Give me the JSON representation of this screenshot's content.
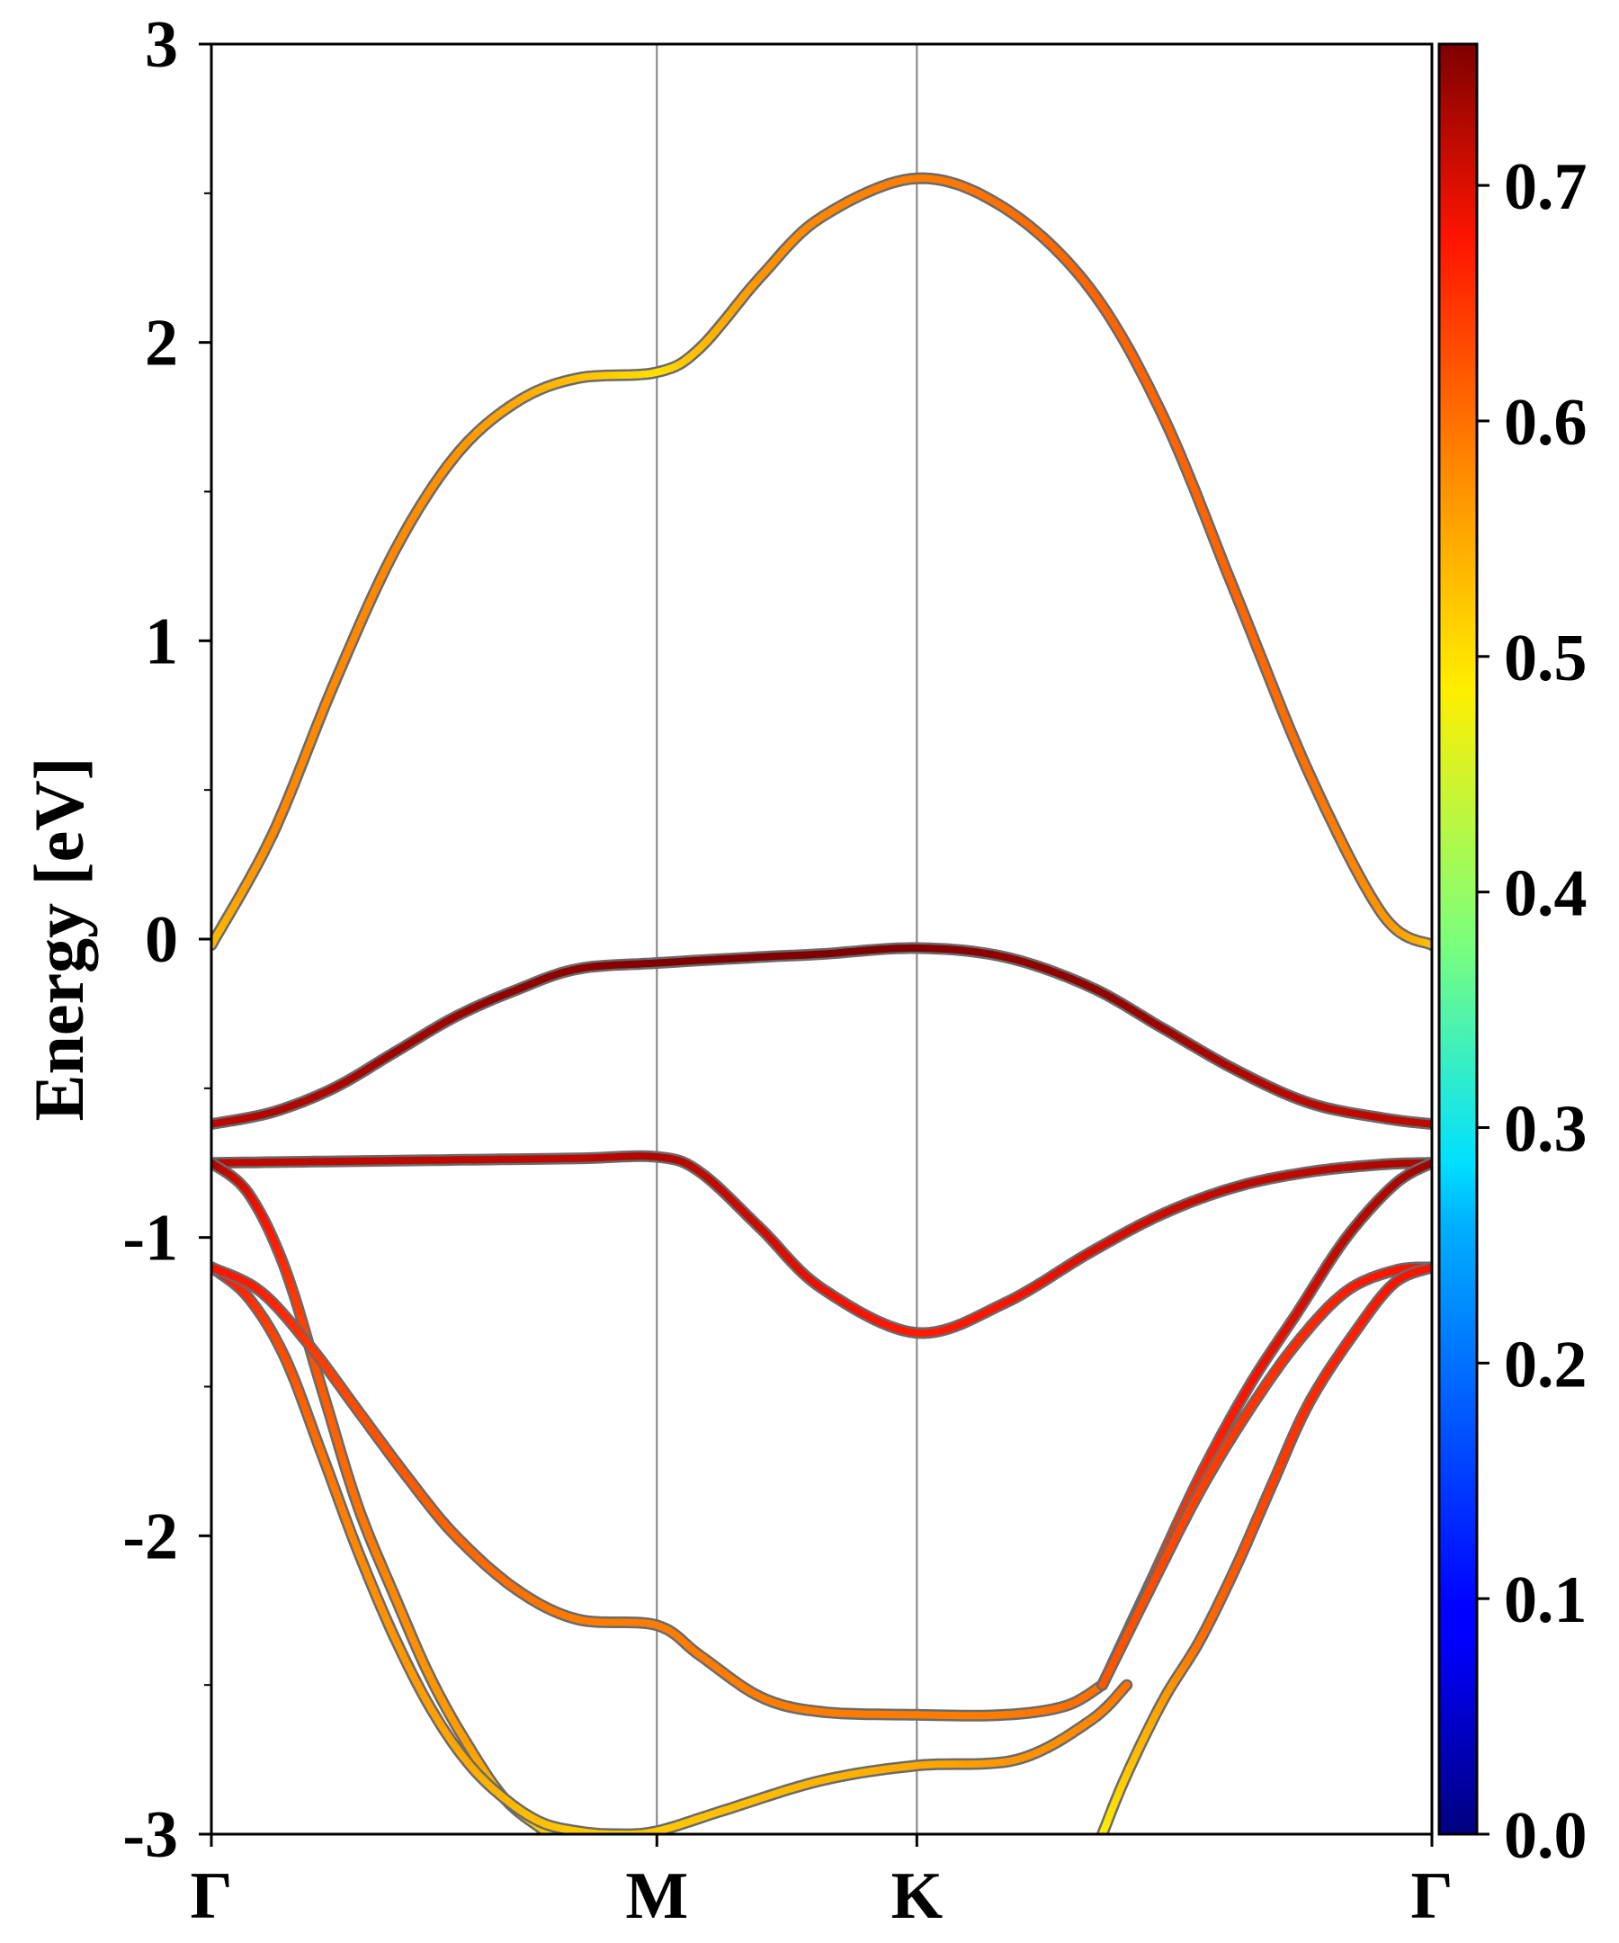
{
  "chart_data": {
    "type": "line",
    "xlabel": "",
    "ylabel": "Energy [eV]",
    "ylim": [
      -3,
      3
    ],
    "yticks": [
      "3",
      "2",
      "1",
      "0",
      "-1",
      "-2",
      "-3"
    ],
    "high_symmetry_points": [
      {
        "label": "Γ",
        "x": 0
      },
      {
        "label": "M",
        "x": 0.365
      },
      {
        "label": "K",
        "x": 0.578
      },
      {
        "label": "Γ",
        "x": 1
      }
    ],
    "grid": false,
    "colorbar": {
      "colormap": "jet",
      "range": [
        0.0,
        0.76
      ],
      "ticks": [
        "0.0",
        "0.1",
        "0.2",
        "0.3",
        "0.4",
        "0.5",
        "0.6",
        "0.7"
      ]
    },
    "series": [
      {
        "x": [
          0,
          0.05,
          0.1,
          0.15,
          0.2,
          0.25,
          0.3,
          0.365,
          0.4,
          0.45,
          0.5,
          0.578,
          0.65,
          0.72,
          0.78,
          0.84,
          0.9,
          0.96,
          1.0
        ],
        "y": [
          -0.02,
          0.35,
          0.85,
          1.3,
          1.62,
          1.8,
          1.88,
          1.9,
          1.98,
          2.22,
          2.42,
          2.55,
          2.45,
          2.18,
          1.75,
          1.15,
          0.55,
          0.08,
          -0.02
        ],
        "weight": [
          0.53,
          0.58,
          0.58,
          0.58,
          0.57,
          0.55,
          0.53,
          0.5,
          0.53,
          0.57,
          0.58,
          0.59,
          0.6,
          0.61,
          0.61,
          0.61,
          0.6,
          0.57,
          0.53
        ]
      },
      {
        "x": [
          0,
          0.05,
          0.1,
          0.15,
          0.2,
          0.25,
          0.3,
          0.365,
          0.45,
          0.5,
          0.578,
          0.65,
          0.72,
          0.78,
          0.84,
          0.9,
          0.96,
          1.0
        ],
        "y": [
          -0.62,
          -0.58,
          -0.5,
          -0.38,
          -0.26,
          -0.17,
          -0.1,
          -0.08,
          -0.06,
          -0.05,
          -0.03,
          -0.06,
          -0.16,
          -0.3,
          -0.44,
          -0.55,
          -0.6,
          -0.62
        ],
        "weight": [
          0.72,
          0.73,
          0.73,
          0.74,
          0.74,
          0.75,
          0.75,
          0.76,
          0.76,
          0.76,
          0.76,
          0.75,
          0.75,
          0.74,
          0.73,
          0.72,
          0.72,
          0.72
        ]
      },
      {
        "x": [
          0,
          0.1,
          0.2,
          0.3,
          0.365,
          0.4,
          0.45,
          0.5,
          0.578,
          0.65,
          0.72,
          0.78,
          0.84,
          0.9,
          0.96,
          1.0
        ],
        "y": [
          -0.75,
          -0.745,
          -0.74,
          -0.735,
          -0.73,
          -0.78,
          -0.97,
          -1.17,
          -1.32,
          -1.22,
          -1.05,
          -0.92,
          -0.83,
          -0.78,
          -0.755,
          -0.75
        ],
        "weight": [
          0.72,
          0.72,
          0.72,
          0.72,
          0.73,
          0.72,
          0.71,
          0.69,
          0.67,
          0.68,
          0.7,
          0.71,
          0.72,
          0.72,
          0.73,
          0.73
        ]
      },
      {
        "x": [
          0,
          0.03,
          0.06,
          0.09,
          0.12,
          0.15,
          0.18,
          0.21,
          0.24,
          0.27,
          0.28
        ],
        "y": [
          -0.75,
          -0.85,
          -1.1,
          -1.5,
          -1.9,
          -2.2,
          -2.48,
          -2.7,
          -2.88,
          -2.98,
          -3.0
        ],
        "weight": [
          0.74,
          0.7,
          0.66,
          0.62,
          0.6,
          0.58,
          0.57,
          0.56,
          0.54,
          0.52,
          0.51
        ]
      },
      {
        "x": [
          0,
          0.03,
          0.06,
          0.09,
          0.12,
          0.15,
          0.18,
          0.21,
          0.24,
          0.27,
          0.3,
          0.33,
          0.365,
          0.42,
          0.5,
          0.578,
          0.66,
          0.72,
          0.75
        ],
        "y": [
          -1.1,
          -1.2,
          -1.4,
          -1.72,
          -2.05,
          -2.34,
          -2.58,
          -2.76,
          -2.88,
          -2.96,
          -2.99,
          -3.0,
          -2.99,
          -2.92,
          -2.82,
          -2.77,
          -2.75,
          -2.62,
          -2.5
        ],
        "weight": [
          0.68,
          0.66,
          0.63,
          0.6,
          0.58,
          0.57,
          0.56,
          0.55,
          0.54,
          0.53,
          0.52,
          0.52,
          0.52,
          0.53,
          0.54,
          0.55,
          0.57,
          0.58,
          0.6
        ]
      },
      {
        "x": [
          0,
          0.04,
          0.08,
          0.12,
          0.16,
          0.2,
          0.25,
          0.3,
          0.365,
          0.4,
          0.45,
          0.5,
          0.578,
          0.65,
          0.7,
          0.73
        ],
        "y": [
          -1.1,
          -1.18,
          -1.36,
          -1.58,
          -1.8,
          -2.0,
          -2.18,
          -2.28,
          -2.3,
          -2.4,
          -2.54,
          -2.59,
          -2.6,
          -2.6,
          -2.57,
          -2.5
        ],
        "weight": [
          0.68,
          0.67,
          0.65,
          0.63,
          0.62,
          0.61,
          0.6,
          0.59,
          0.59,
          0.59,
          0.59,
          0.59,
          0.59,
          0.59,
          0.6,
          0.6
        ]
      },
      {
        "x": [
          0.73,
          0.77,
          0.81,
          0.85,
          0.89,
          0.93,
          0.97,
          1.0
        ],
        "y": [
          -2.5,
          -2.15,
          -1.8,
          -1.5,
          -1.25,
          -1.0,
          -0.82,
          -0.75
        ],
        "weight": [
          0.62,
          0.64,
          0.66,
          0.68,
          0.7,
          0.72,
          0.73,
          0.74
        ]
      },
      {
        "x": [
          0.73,
          0.77,
          0.81,
          0.85,
          0.89,
          0.93,
          0.97,
          1.0
        ],
        "y": [
          -2.5,
          -2.17,
          -1.85,
          -1.58,
          -1.35,
          -1.18,
          -1.11,
          -1.1
        ],
        "weight": [
          0.62,
          0.63,
          0.64,
          0.65,
          0.66,
          0.67,
          0.68,
          0.68
        ]
      },
      {
        "x": [
          0.73,
          0.75,
          0.78,
          0.81,
          0.84,
          0.87,
          0.9,
          0.94,
          0.97,
          1.0
        ],
        "y": [
          -3.0,
          -2.8,
          -2.55,
          -2.35,
          -2.1,
          -1.82,
          -1.55,
          -1.3,
          -1.15,
          -1.1
        ],
        "weight": [
          0.48,
          0.52,
          0.56,
          0.6,
          0.62,
          0.64,
          0.66,
          0.67,
          0.68,
          0.68
        ]
      }
    ]
  }
}
